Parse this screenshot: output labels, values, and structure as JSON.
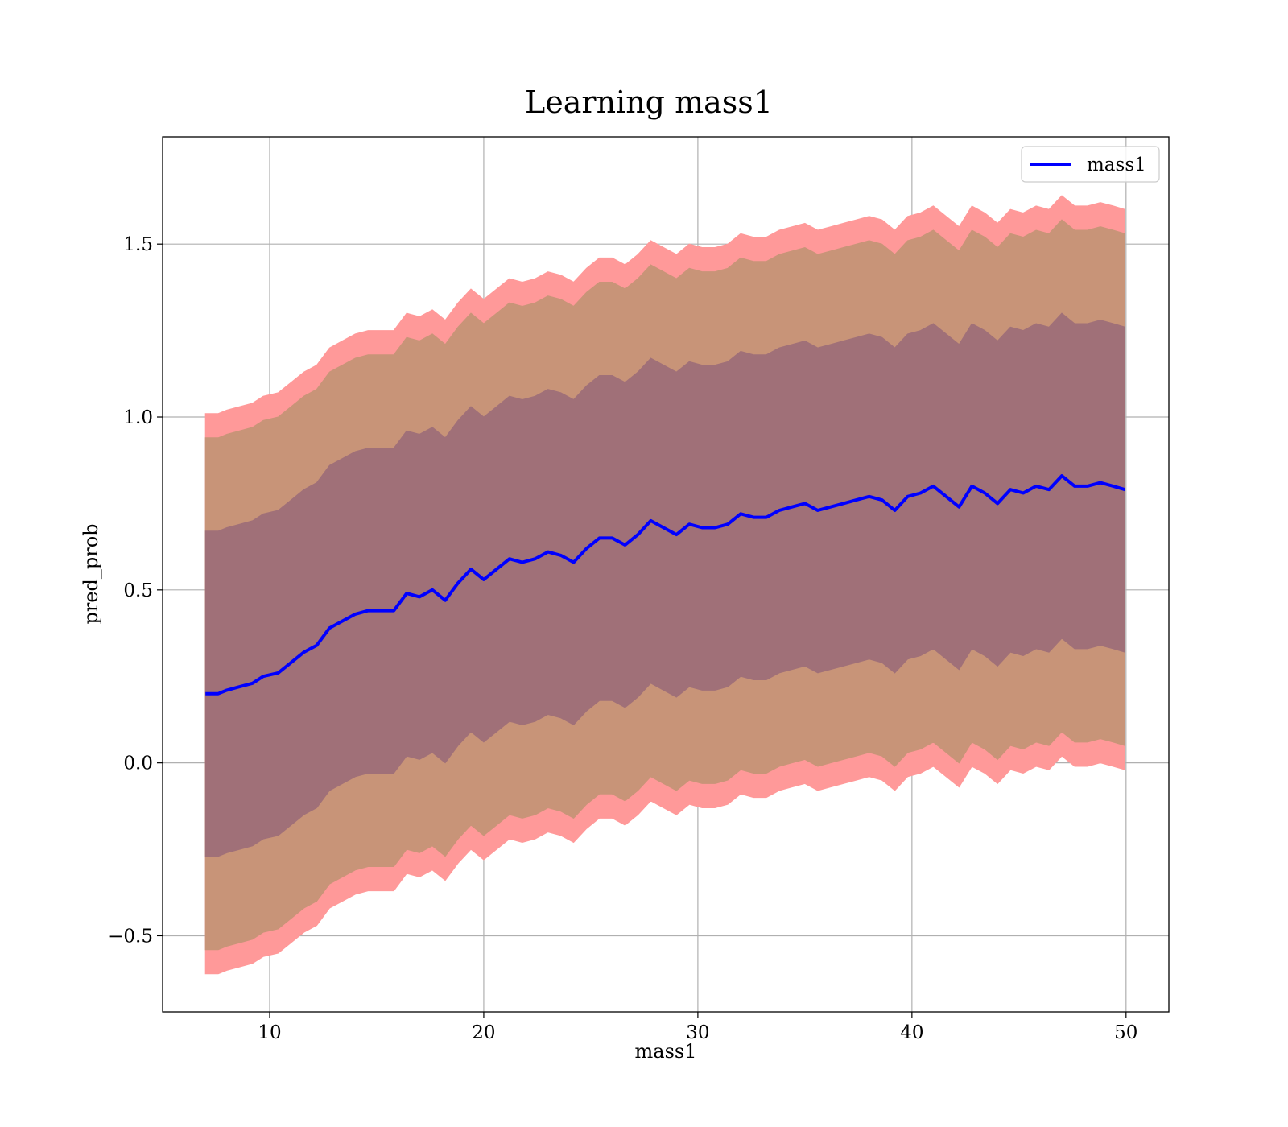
{
  "chart_data": {
    "type": "line",
    "title": "Learning mass1",
    "xlabel": "mass1",
    "ylabel": "pred_prob",
    "xlim": [
      5,
      52
    ],
    "ylim": [
      -0.72,
      1.81
    ],
    "xticks": [
      10,
      20,
      30,
      40,
      50
    ],
    "yticks": [
      -0.5,
      0.0,
      0.5,
      1.0,
      1.5
    ],
    "xtick_labels": [
      "10",
      "20",
      "30",
      "40",
      "50"
    ],
    "ytick_labels": [
      "−0.5",
      "0.0",
      "0.5",
      "1.0",
      "1.5"
    ],
    "grid": true,
    "legend": {
      "placement": "top-right",
      "entries": [
        "mass1"
      ]
    },
    "series": [
      {
        "name": "mass1",
        "color": "#0000ff",
        "x": [
          7,
          7.6,
          8,
          8.6,
          9.2,
          9.7,
          10.4,
          11,
          11.6,
          12.2,
          12.8,
          13.4,
          14,
          14.6,
          15.2,
          15.8,
          16.4,
          17,
          17.6,
          18.2,
          18.8,
          19.4,
          20,
          20.6,
          21.2,
          21.8,
          22.4,
          23,
          23.6,
          24.2,
          24.8,
          25.4,
          26,
          26.6,
          27.2,
          27.8,
          28.4,
          29,
          29.6,
          30.2,
          30.8,
          31.4,
          32,
          32.6,
          33.2,
          33.8,
          34.4,
          35,
          35.6,
          36.2,
          36.8,
          37.4,
          38,
          38.6,
          39.2,
          39.8,
          40.4,
          41,
          41.6,
          42.2,
          42.8,
          43.4,
          44,
          44.6,
          45.2,
          45.8,
          46.4,
          47,
          47.6,
          48.2,
          48.8,
          49.4,
          49.95
        ],
        "values": [
          0.2,
          0.2,
          0.21,
          0.22,
          0.23,
          0.25,
          0.26,
          0.29,
          0.32,
          0.34,
          0.39,
          0.41,
          0.43,
          0.44,
          0.44,
          0.44,
          0.49,
          0.48,
          0.5,
          0.47,
          0.52,
          0.56,
          0.53,
          0.56,
          0.59,
          0.58,
          0.59,
          0.61,
          0.6,
          0.58,
          0.62,
          0.65,
          0.65,
          0.63,
          0.66,
          0.7,
          0.68,
          0.66,
          0.69,
          0.68,
          0.68,
          0.69,
          0.72,
          0.71,
          0.71,
          0.73,
          0.74,
          0.75,
          0.73,
          0.74,
          0.75,
          0.76,
          0.77,
          0.76,
          0.73,
          0.77,
          0.78,
          0.8,
          0.77,
          0.74,
          0.8,
          0.78,
          0.75,
          0.79,
          0.78,
          0.8,
          0.79,
          0.83,
          0.8,
          0.8,
          0.81,
          0.8,
          0.79
        ]
      }
    ],
    "bands": [
      {
        "level": "outer",
        "color": "#ff9999",
        "offset": 0.81
      },
      {
        "level": "middle",
        "color": "#c89478",
        "offset": 0.74
      },
      {
        "level": "inner",
        "color": "#a07078",
        "offset": 0.47
      }
    ]
  }
}
